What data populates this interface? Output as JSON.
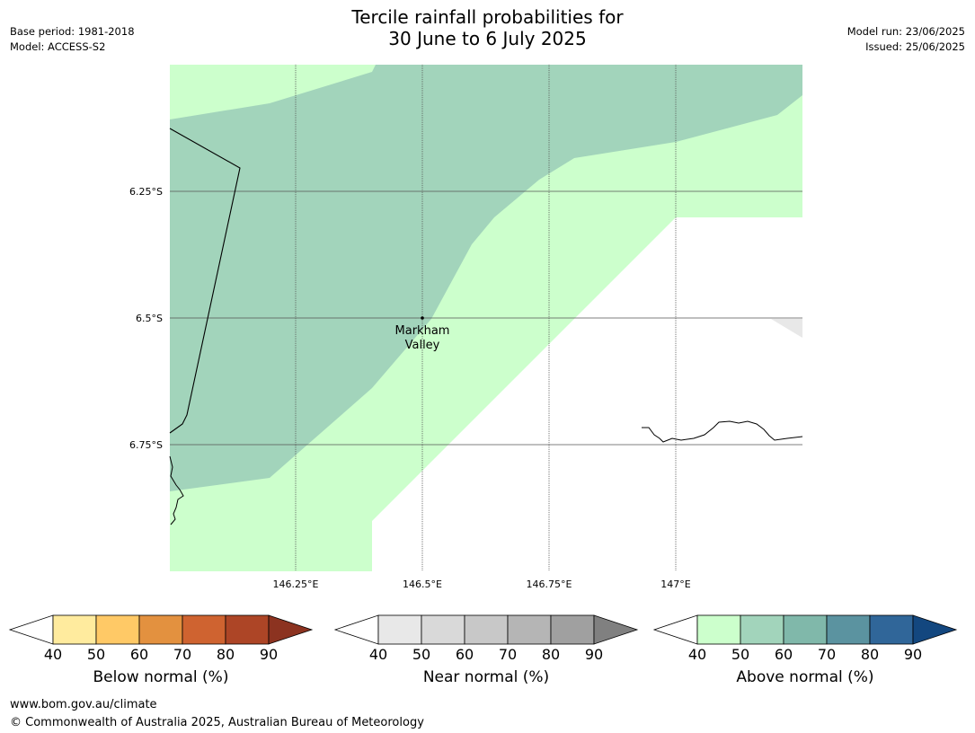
{
  "header": {
    "base_period": "Base period: 1981-2018",
    "model": "Model: ACCESS-S2",
    "title_line1": "Tercile rainfall probabilities for",
    "title_line2": "30 June to 6 July 2025",
    "model_run": "Model run: 23/06/2025",
    "issued": "Issued: 25/06/2025"
  },
  "map": {
    "lon_labels": [
      "146.25°E",
      "146.5°E",
      "146.75°E",
      "147°E"
    ],
    "lat_labels": [
      "6.25°S",
      "6.5°S",
      "6.75°S"
    ],
    "place": {
      "name_line1": "Markham",
      "name_line2": "Valley"
    },
    "colors": {
      "above_40_50": "#ccffcc",
      "above_50_60": "#a2d4bb",
      "near_40_50": "#e8e8e8"
    }
  },
  "legends": [
    {
      "label": "Below normal (%)",
      "ticks": [
        "40",
        "50",
        "60",
        "70",
        "80",
        "90"
      ],
      "colors": [
        "#ffeb9e",
        "#ffc966",
        "#e3913f",
        "#cf6330",
        "#ad4526",
        "#8c3320"
      ]
    },
    {
      "label": "Near normal (%)",
      "ticks": [
        "40",
        "50",
        "60",
        "70",
        "80",
        "90"
      ],
      "colors": [
        "#e8e8e8",
        "#d9d9d9",
        "#c8c8c8",
        "#b5b5b5",
        "#a0a0a0",
        "#808080"
      ]
    },
    {
      "label": "Above normal (%)",
      "ticks": [
        "40",
        "50",
        "60",
        "70",
        "80",
        "90"
      ],
      "colors": [
        "#ccffcc",
        "#a2d4bb",
        "#80b8aa",
        "#5b93a0",
        "#306699",
        "#13477f"
      ]
    }
  ],
  "footer": {
    "url": "www.bom.gov.au/climate",
    "copyright": "© Commonwealth of Australia 2025, Australian Bureau of Meteorology"
  }
}
